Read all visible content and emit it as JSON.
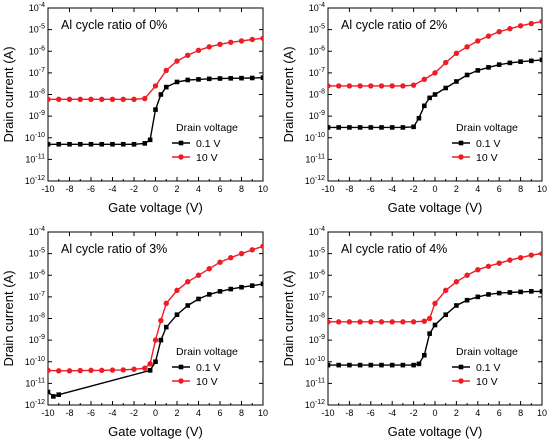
{
  "chart_data": [
    {
      "type": "line",
      "title": "Al cycle ratio of 0%",
      "xlabel": "Gate voltage (V)",
      "ylabel": "Drain current (A)",
      "xlim": [
        -10,
        10
      ],
      "ylim": [
        1e-12,
        0.0001
      ],
      "yscale": "log",
      "x_ticks": [
        "-10",
        "-8",
        "-6",
        "-4",
        "-2",
        "0",
        "2",
        "4",
        "6",
        "8",
        "10"
      ],
      "y_ticks": [
        {
          "base": "10",
          "exp": "-12"
        },
        {
          "base": "10",
          "exp": "-11"
        },
        {
          "base": "10",
          "exp": "-10"
        },
        {
          "base": "10",
          "exp": "-9"
        },
        {
          "base": "10",
          "exp": "-8"
        },
        {
          "base": "10",
          "exp": "-7"
        },
        {
          "base": "10",
          "exp": "-6"
        },
        {
          "base": "10",
          "exp": "-5"
        },
        {
          "base": "10",
          "exp": "-4"
        }
      ],
      "legend_title": "Drain voltage",
      "legend_position": "lower-right",
      "series": [
        {
          "name": "0.1 V",
          "color": "#000000",
          "marker": "square",
          "points": [
            [
              -10,
              5e-11
            ],
            [
              -9,
              5e-11
            ],
            [
              -8,
              5e-11
            ],
            [
              -7,
              5e-11
            ],
            [
              -6,
              5e-11
            ],
            [
              -5,
              5e-11
            ],
            [
              -4,
              5e-11
            ],
            [
              -3,
              5e-11
            ],
            [
              -2,
              5e-11
            ],
            [
              -1,
              5.5e-11
            ],
            [
              -0.5,
              8e-11
            ],
            [
              0,
              2e-09
            ],
            [
              0.5,
              1e-08
            ],
            [
              1,
              2.2e-08
            ],
            [
              2,
              3.8e-08
            ],
            [
              3,
              4.7e-08
            ],
            [
              4,
              5e-08
            ],
            [
              5,
              5.3e-08
            ],
            [
              6,
              5.5e-08
            ],
            [
              7,
              5.6e-08
            ],
            [
              8,
              5.7e-08
            ],
            [
              9,
              5.8e-08
            ],
            [
              10,
              6e-08
            ]
          ]
        },
        {
          "name": "10 V",
          "color": "#ee1c25",
          "marker": "circle",
          "points": [
            [
              -10,
              6e-09
            ],
            [
              -9,
              6e-09
            ],
            [
              -8,
              6e-09
            ],
            [
              -7,
              6e-09
            ],
            [
              -6,
              6e-09
            ],
            [
              -5,
              6e-09
            ],
            [
              -4,
              6e-09
            ],
            [
              -3,
              6e-09
            ],
            [
              -2,
              6e-09
            ],
            [
              -1,
              6.5e-09
            ],
            [
              0,
              2.5e-08
            ],
            [
              1,
              1.3e-07
            ],
            [
              2,
              3.5e-07
            ],
            [
              3,
              6.5e-07
            ],
            [
              4,
              1.1e-06
            ],
            [
              5,
              1.6e-06
            ],
            [
              6,
              2.1e-06
            ],
            [
              7,
              2.6e-06
            ],
            [
              8,
              3e-06
            ],
            [
              9,
              3.5e-06
            ],
            [
              10,
              4e-06
            ]
          ]
        }
      ]
    },
    {
      "type": "line",
      "title": "Al cycle ratio of 2%",
      "xlabel": "Gate voltage (V)",
      "ylabel": "Drain current (A)",
      "xlim": [
        -10,
        10
      ],
      "ylim": [
        1e-12,
        0.0001
      ],
      "yscale": "log",
      "x_ticks": [
        "-10",
        "-8",
        "-6",
        "-4",
        "-2",
        "0",
        "2",
        "4",
        "6",
        "8",
        "10"
      ],
      "y_ticks": [
        {
          "base": "10",
          "exp": "-12"
        },
        {
          "base": "10",
          "exp": "-11"
        },
        {
          "base": "10",
          "exp": "-10"
        },
        {
          "base": "10",
          "exp": "-9"
        },
        {
          "base": "10",
          "exp": "-8"
        },
        {
          "base": "10",
          "exp": "-7"
        },
        {
          "base": "10",
          "exp": "-6"
        },
        {
          "base": "10",
          "exp": "-5"
        },
        {
          "base": "10",
          "exp": "-4"
        }
      ],
      "legend_title": "Drain voltage",
      "legend_position": "lower-right",
      "series": [
        {
          "name": "0.1 V",
          "color": "#000000",
          "marker": "square",
          "points": [
            [
              -10,
              3e-10
            ],
            [
              -9,
              3e-10
            ],
            [
              -8,
              3e-10
            ],
            [
              -7,
              3e-10
            ],
            [
              -6,
              3e-10
            ],
            [
              -5,
              3e-10
            ],
            [
              -4,
              3e-10
            ],
            [
              -3,
              3e-10
            ],
            [
              -2,
              3.2e-10
            ],
            [
              -1.5,
              8e-10
            ],
            [
              -1,
              3e-09
            ],
            [
              -0.5,
              7e-09
            ],
            [
              0,
              1e-08
            ],
            [
              1,
              2e-08
            ],
            [
              2,
              4e-08
            ],
            [
              3,
              8e-08
            ],
            [
              4,
              1.3e-07
            ],
            [
              5,
              1.8e-07
            ],
            [
              6,
              2.4e-07
            ],
            [
              7,
              2.9e-07
            ],
            [
              8,
              3.3e-07
            ],
            [
              9,
              3.6e-07
            ],
            [
              10,
              4e-07
            ]
          ]
        },
        {
          "name": "10 V",
          "color": "#ee1c25",
          "marker": "circle",
          "points": [
            [
              -10,
              2.5e-08
            ],
            [
              -9,
              2.5e-08
            ],
            [
              -8,
              2.5e-08
            ],
            [
              -7,
              2.5e-08
            ],
            [
              -6,
              2.5e-08
            ],
            [
              -5,
              2.5e-08
            ],
            [
              -4,
              2.5e-08
            ],
            [
              -3,
              2.5e-08
            ],
            [
              -2,
              2.7e-08
            ],
            [
              -1,
              5e-08
            ],
            [
              0,
              1e-07
            ],
            [
              1,
              3e-07
            ],
            [
              2,
              8e-07
            ],
            [
              3,
              1.6e-06
            ],
            [
              4,
              3e-06
            ],
            [
              5,
              5e-06
            ],
            [
              6,
              8e-06
            ],
            [
              7,
              1.1e-05
            ],
            [
              8,
              1.5e-05
            ],
            [
              9,
              1.9e-05
            ],
            [
              10,
              2.4e-05
            ]
          ]
        }
      ]
    },
    {
      "type": "line",
      "title": "Al cycle ratio of 3%",
      "xlabel": "Gate voltage (V)",
      "ylabel": "Drain current (A)",
      "xlim": [
        -10,
        10
      ],
      "ylim": [
        1e-12,
        0.0001
      ],
      "yscale": "log",
      "x_ticks": [
        "-10",
        "-8",
        "-6",
        "-4",
        "-2",
        "0",
        "2",
        "4",
        "6",
        "8",
        "10"
      ],
      "y_ticks": [
        {
          "base": "10",
          "exp": "-12"
        },
        {
          "base": "10",
          "exp": "-11"
        },
        {
          "base": "10",
          "exp": "-10"
        },
        {
          "base": "10",
          "exp": "-9"
        },
        {
          "base": "10",
          "exp": "-8"
        },
        {
          "base": "10",
          "exp": "-7"
        },
        {
          "base": "10",
          "exp": "-6"
        },
        {
          "base": "10",
          "exp": "-5"
        },
        {
          "base": "10",
          "exp": "-4"
        }
      ],
      "legend_title": "Drain voltage",
      "legend_position": "lower-right",
      "series": [
        {
          "name": "0.1 V",
          "color": "#000000",
          "marker": "square",
          "points": [
            [
              -10,
              4e-12
            ],
            [
              -9.5,
              2.5e-12
            ],
            [
              -9,
              3e-12
            ],
            [
              -0.5,
              4e-11
            ],
            [
              0,
              1e-10
            ],
            [
              0.5,
              1e-09
            ],
            [
              1,
              4e-09
            ],
            [
              2,
              1.5e-08
            ],
            [
              3,
              4e-08
            ],
            [
              4,
              8e-08
            ],
            [
              5,
              1.3e-07
            ],
            [
              6,
              1.8e-07
            ],
            [
              7,
              2.3e-07
            ],
            [
              8,
              2.8e-07
            ],
            [
              9,
              3.3e-07
            ],
            [
              10,
              4e-07
            ]
          ]
        },
        {
          "name": "10 V",
          "color": "#ee1c25",
          "marker": "circle",
          "points": [
            [
              -10,
              4e-11
            ],
            [
              -9,
              3.8e-11
            ],
            [
              -8,
              3.8e-11
            ],
            [
              -7,
              3.9e-11
            ],
            [
              -6,
              4e-11
            ],
            [
              -5,
              4e-11
            ],
            [
              -4,
              4.1e-11
            ],
            [
              -3,
              4.2e-11
            ],
            [
              -2,
              4.5e-11
            ],
            [
              -1,
              5e-11
            ],
            [
              -0.5,
              8e-11
            ],
            [
              0,
              1e-09
            ],
            [
              0.5,
              8e-09
            ],
            [
              1,
              5e-08
            ],
            [
              2,
              2e-07
            ],
            [
              3,
              5e-07
            ],
            [
              4,
              1e-06
            ],
            [
              5,
              2e-06
            ],
            [
              6,
              4e-06
            ],
            [
              7,
              6.5e-06
            ],
            [
              8,
              1e-05
            ],
            [
              9,
              1.5e-05
            ],
            [
              10,
              2.2e-05
            ]
          ]
        }
      ]
    },
    {
      "type": "line",
      "title": "Al cycle ratio of 4%",
      "xlabel": "Gate voltage (V)",
      "ylabel": "Drain current (A)",
      "xlim": [
        -10,
        10
      ],
      "ylim": [
        1e-12,
        0.0001
      ],
      "yscale": "log",
      "x_ticks": [
        "-10",
        "-8",
        "-6",
        "-4",
        "-2",
        "0",
        "2",
        "4",
        "6",
        "8",
        "10"
      ],
      "y_ticks": [
        {
          "base": "10",
          "exp": "-12"
        },
        {
          "base": "10",
          "exp": "-11"
        },
        {
          "base": "10",
          "exp": "-10"
        },
        {
          "base": "10",
          "exp": "-9"
        },
        {
          "base": "10",
          "exp": "-8"
        },
        {
          "base": "10",
          "exp": "-7"
        },
        {
          "base": "10",
          "exp": "-6"
        },
        {
          "base": "10",
          "exp": "-5"
        },
        {
          "base": "10",
          "exp": "-4"
        }
      ],
      "legend_title": "Drain voltage",
      "legend_position": "lower-right",
      "series": [
        {
          "name": "0.1 V",
          "color": "#000000",
          "marker": "square",
          "points": [
            [
              -10,
              7e-11
            ],
            [
              -9,
              7e-11
            ],
            [
              -8,
              7e-11
            ],
            [
              -7,
              7e-11
            ],
            [
              -6,
              7e-11
            ],
            [
              -5,
              7e-11
            ],
            [
              -4,
              7e-11
            ],
            [
              -3,
              7e-11
            ],
            [
              -2,
              7e-11
            ],
            [
              -1.5,
              8e-11
            ],
            [
              -1,
              2e-10
            ],
            [
              -0.5,
              2e-09
            ],
            [
              0,
              5e-09
            ],
            [
              1,
              1.5e-08
            ],
            [
              2,
              4e-08
            ],
            [
              3,
              7e-08
            ],
            [
              4,
              1e-07
            ],
            [
              5,
              1.3e-07
            ],
            [
              6,
              1.5e-07
            ],
            [
              7,
              1.6e-07
            ],
            [
              8,
              1.7e-07
            ],
            [
              9,
              1.8e-07
            ],
            [
              10,
              1.8e-07
            ]
          ]
        },
        {
          "name": "10 V",
          "color": "#ee1c25",
          "marker": "circle",
          "points": [
            [
              -10,
              7e-09
            ],
            [
              -9,
              7e-09
            ],
            [
              -8,
              7e-09
            ],
            [
              -7,
              7e-09
            ],
            [
              -6,
              7e-09
            ],
            [
              -5,
              7e-09
            ],
            [
              -4,
              7e-09
            ],
            [
              -3,
              7e-09
            ],
            [
              -2,
              7e-09
            ],
            [
              -1,
              7.5e-09
            ],
            [
              -0.5,
              1e-08
            ],
            [
              0,
              5e-08
            ],
            [
              1,
              2e-07
            ],
            [
              2,
              5e-07
            ],
            [
              3,
              1e-06
            ],
            [
              4,
              1.8e-06
            ],
            [
              5,
              2.6e-06
            ],
            [
              6,
              3.6e-06
            ],
            [
              7,
              5e-06
            ],
            [
              8,
              6.5e-06
            ],
            [
              9,
              8.5e-06
            ],
            [
              10,
              1e-05
            ]
          ]
        }
      ]
    }
  ]
}
